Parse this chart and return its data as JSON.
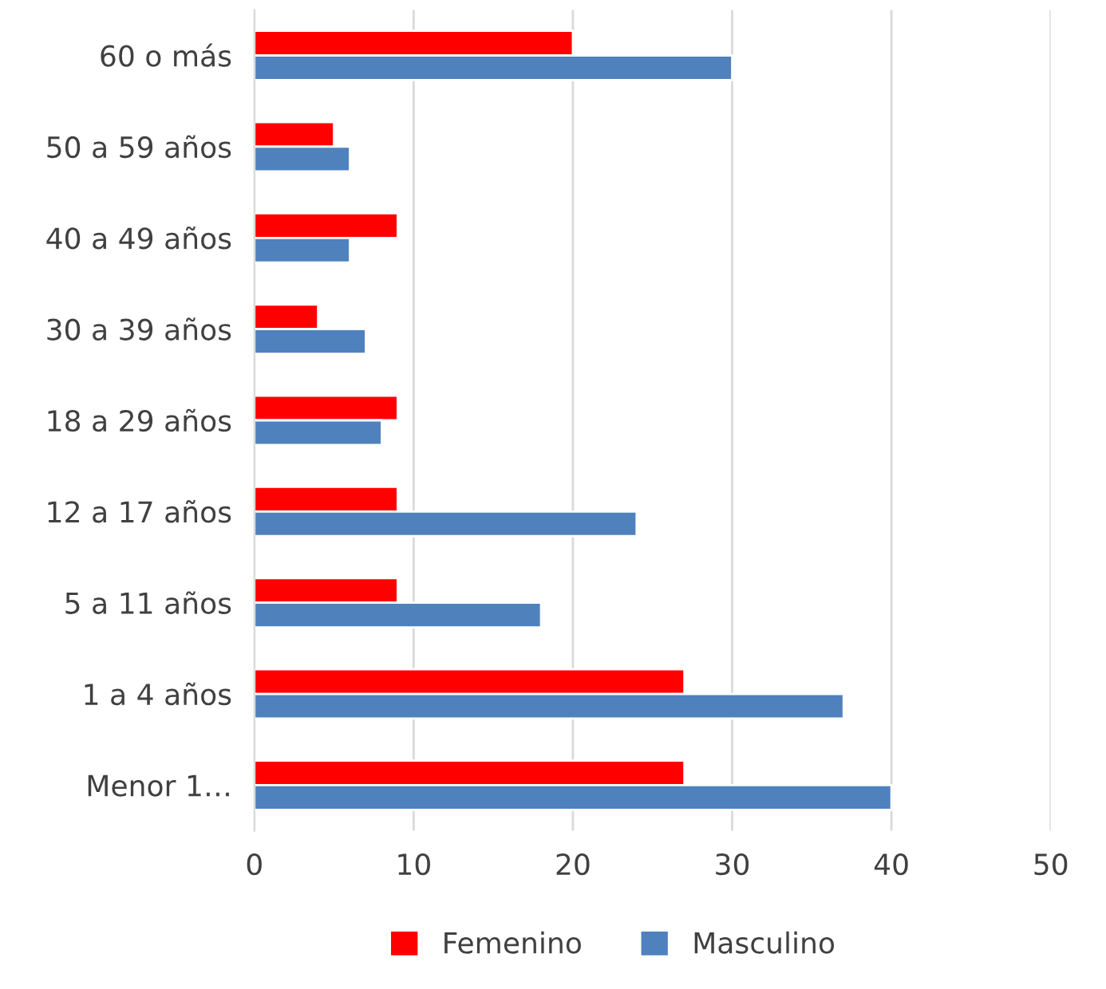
{
  "chart_data": {
    "type": "bar",
    "orientation": "horizontal",
    "categories": [
      "60 o más",
      "50 a 59 años",
      "40 a 49 años",
      "30 a 39 años",
      "18 a 29 años",
      "12 a 17 años",
      "5 a 11 años",
      "1 a 4 años",
      "Menor 1…"
    ],
    "series": [
      {
        "name": "Femenino",
        "color": "#ff0000",
        "values": [
          20,
          5,
          9,
          4,
          9,
          9,
          9,
          27,
          27
        ]
      },
      {
        "name": "Masculino",
        "color": "#4f81bd",
        "values": [
          30,
          6,
          6,
          7,
          8,
          24,
          18,
          37,
          40
        ]
      }
    ],
    "xlim": [
      0,
      50
    ],
    "xticks": [
      0,
      10,
      20,
      30,
      40,
      50
    ],
    "grid": "x",
    "legend": "bottom"
  }
}
